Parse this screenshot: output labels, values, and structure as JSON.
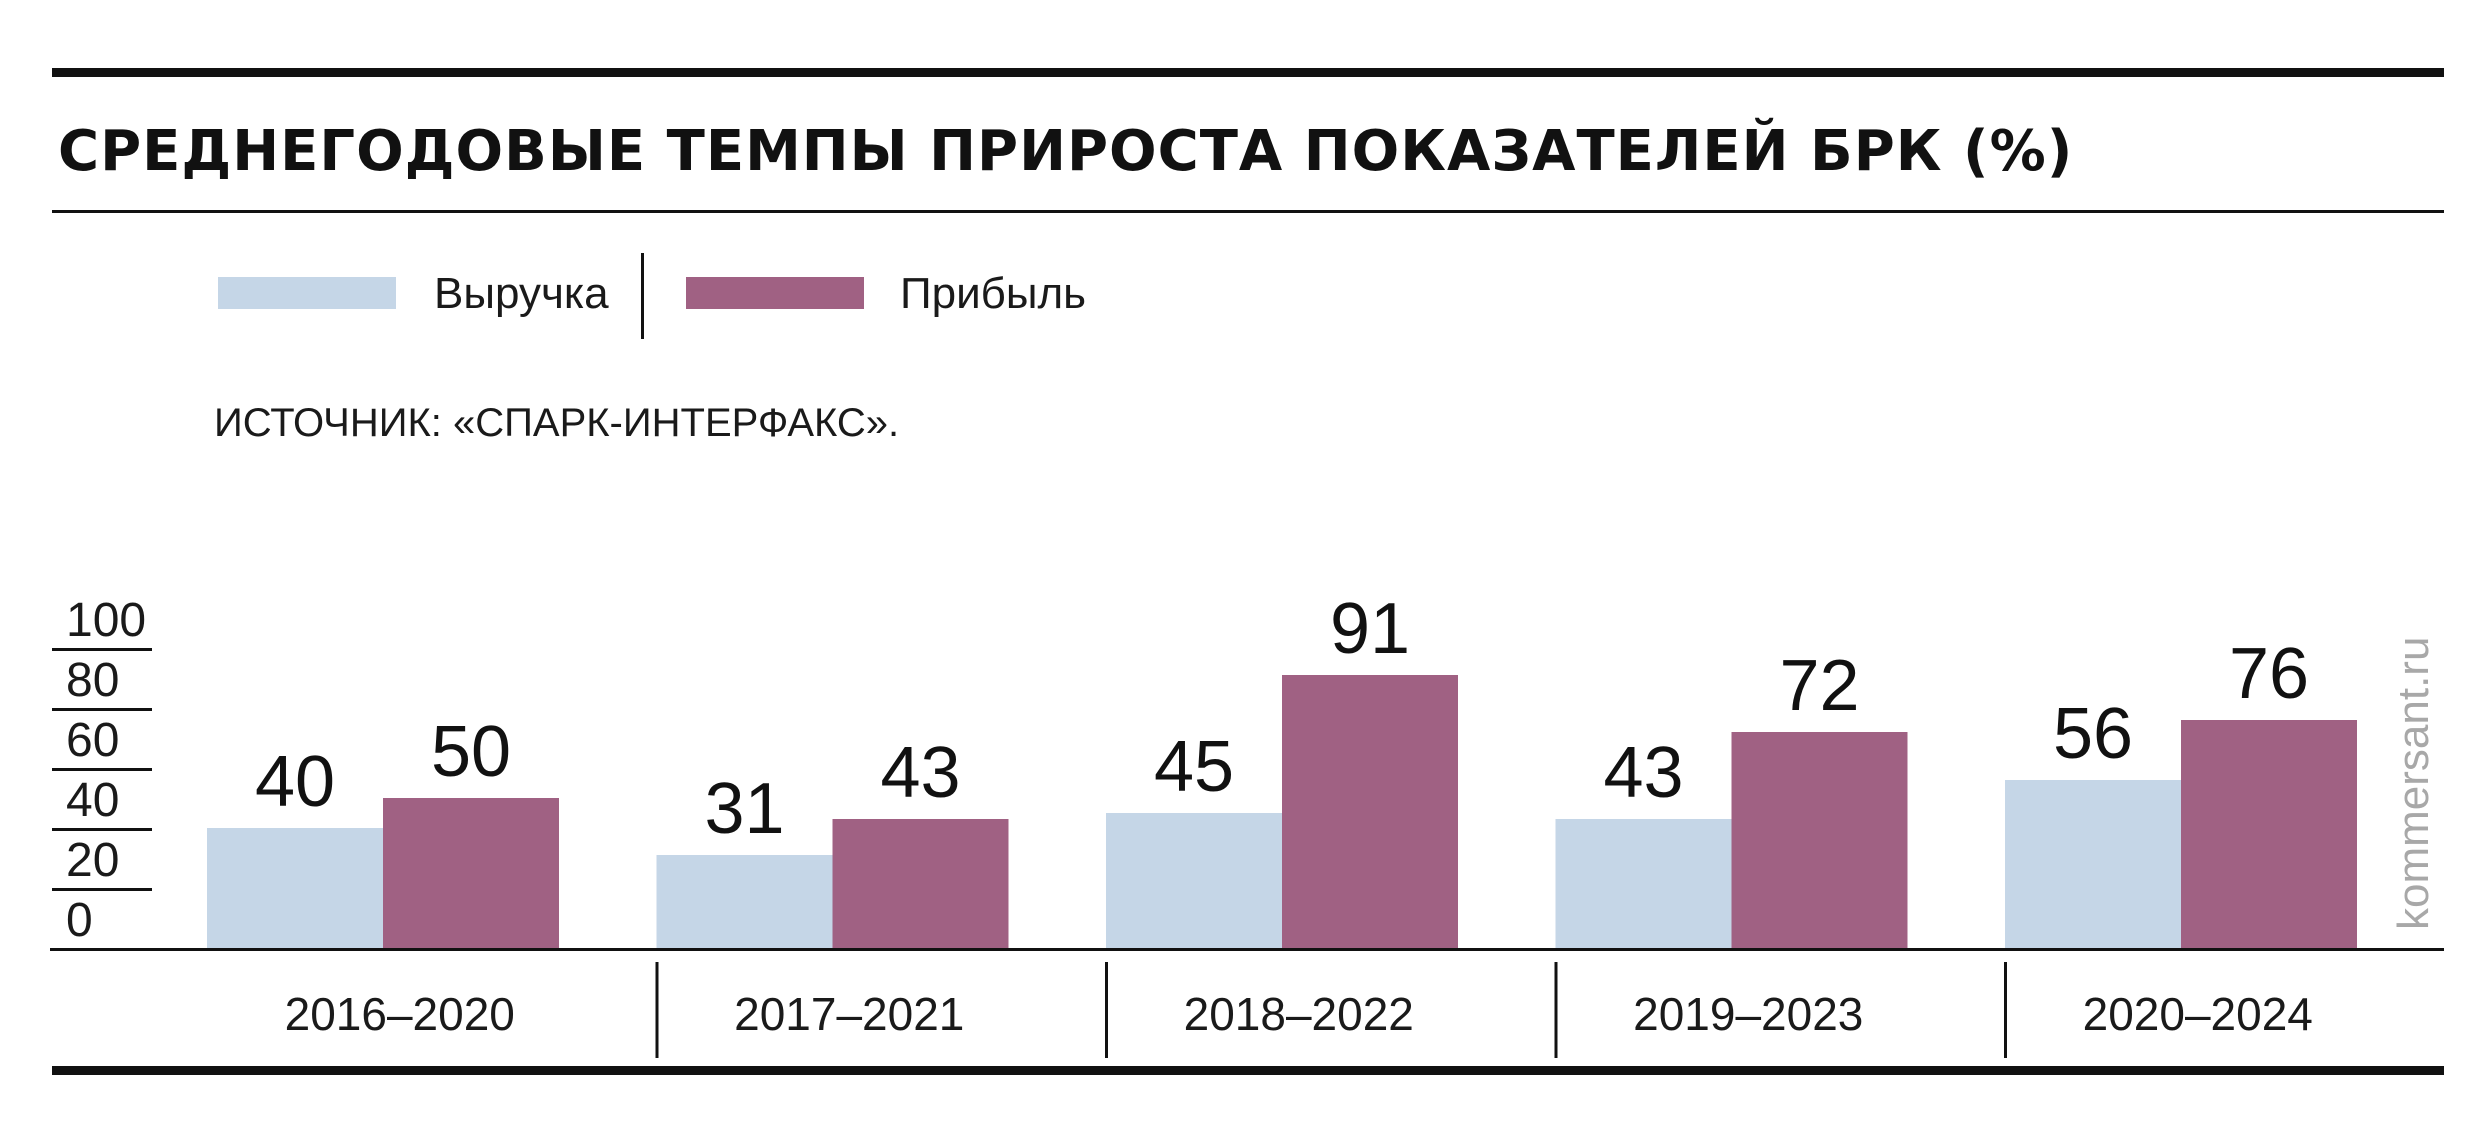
{
  "chart_data": {
    "type": "bar",
    "title": "СРЕДНЕГОДОВЫЕ ТЕМПЫ ПРИРОСТА ПОКАЗАТЕЛЕЙ БРК (%)",
    "source": "ИСТОЧНИК: «СПАРК-ИНТЕРФАКС».",
    "categories": [
      "2016–2020",
      "2017–2021",
      "2018–2022",
      "2019–2023",
      "2020–2024"
    ],
    "series": [
      {
        "name": "Выручка",
        "values": [
          40,
          31,
          45,
          43,
          56
        ],
        "color": "#c5d6e7"
      },
      {
        "name": "Прибыль",
        "values": [
          50,
          43,
          91,
          72,
          76
        ],
        "color": "#a06183"
      }
    ],
    "y_ticks": [
      "0",
      "20",
      "40",
      "60",
      "80",
      "100"
    ],
    "ylim": [
      0,
      100
    ],
    "grid": false,
    "legend_position": "top-left"
  },
  "watermark": "kommersant.ru"
}
